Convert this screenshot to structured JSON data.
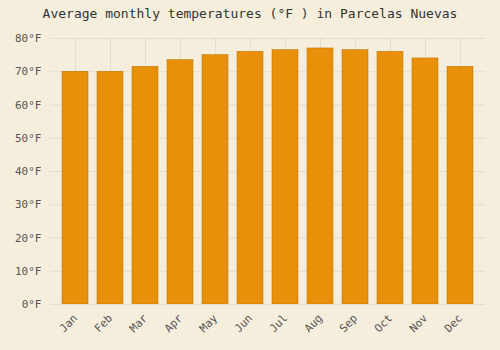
{
  "chart_data": {
    "type": "bar",
    "title": "Average monthly temperatures (°F ) in Parcelas Nuevas",
    "categories": [
      "Jan",
      "Feb",
      "Mar",
      "Apr",
      "May",
      "Jun",
      "Jul",
      "Aug",
      "Sep",
      "Oct",
      "Nov",
      "Dec"
    ],
    "values": [
      70.0,
      70.0,
      71.5,
      73.5,
      75.0,
      76.0,
      76.5,
      77.0,
      76.5,
      76.0,
      74.0,
      71.5
    ],
    "color": "#E8900A",
    "ylim": [
      0,
      80
    ],
    "yticks": [
      {
        "value": 0,
        "label": "0°F"
      },
      {
        "value": 10,
        "label": "10°F"
      },
      {
        "value": 20,
        "label": "20°F"
      },
      {
        "value": 30,
        "label": "30°F"
      },
      {
        "value": 40,
        "label": "40°F"
      },
      {
        "value": 50,
        "label": "50°F"
      },
      {
        "value": 60,
        "label": "60°F"
      },
      {
        "value": 70,
        "label": "70°F"
      },
      {
        "value": 80,
        "label": "80°F"
      }
    ],
    "grid": true
  }
}
